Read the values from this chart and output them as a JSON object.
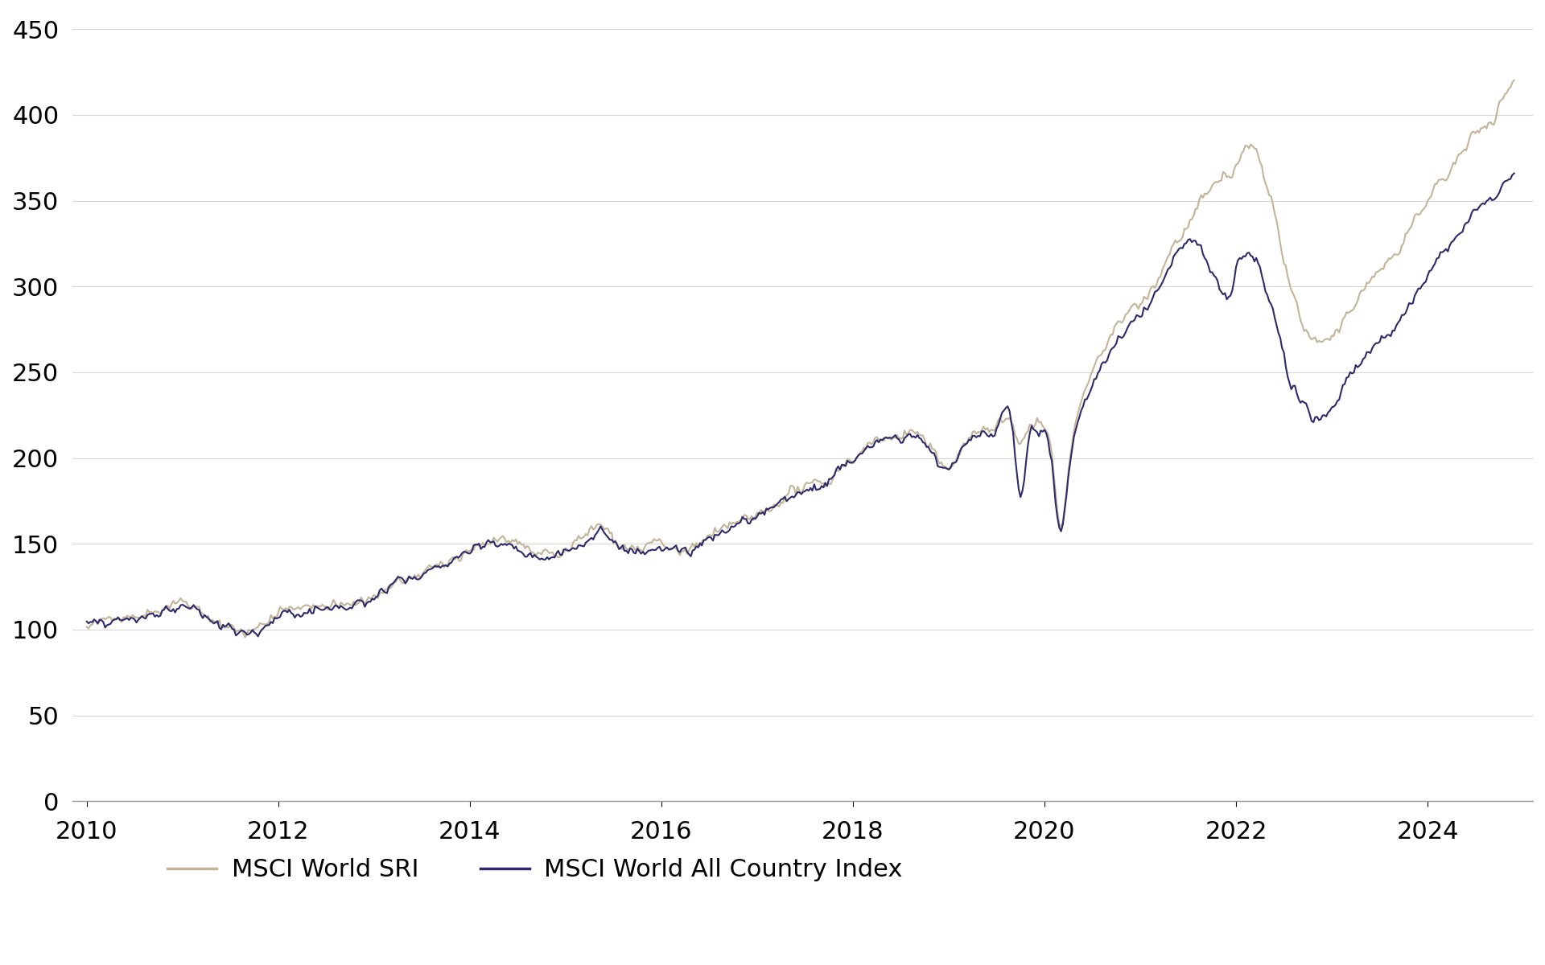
{
  "sri_color": "#C4B49A",
  "world_color": "#2D2A6B",
  "line_width": 1.5,
  "background_color": "#FFFFFF",
  "legend_labels": [
    "MSCI World SRI",
    "MSCI World All Country Index"
  ],
  "yticks": [
    0,
    50,
    100,
    150,
    200,
    250,
    300,
    350,
    400,
    450
  ],
  "xticks": [
    2010,
    2012,
    2014,
    2016,
    2018,
    2020,
    2022,
    2024
  ],
  "ylim": [
    0,
    460
  ],
  "xlim": [
    2009.85,
    2025.1
  ],
  "grid_color": "#CCCCCC",
  "grid_alpha": 0.8,
  "anchor_sri": [
    [
      2010.0,
      100
    ],
    [
      2010.5,
      108
    ],
    [
      2010.92,
      114
    ],
    [
      2011.0,
      116
    ],
    [
      2011.25,
      107
    ],
    [
      2011.58,
      100
    ],
    [
      2011.75,
      99
    ],
    [
      2011.92,
      105
    ],
    [
      2012.0,
      107
    ],
    [
      2012.5,
      112
    ],
    [
      2012.75,
      115
    ],
    [
      2012.92,
      118
    ],
    [
      2013.0,
      120
    ],
    [
      2013.25,
      128
    ],
    [
      2013.5,
      133
    ],
    [
      2013.75,
      140
    ],
    [
      2013.92,
      145
    ],
    [
      2014.0,
      147
    ],
    [
      2014.25,
      151
    ],
    [
      2014.42,
      150
    ],
    [
      2014.58,
      147
    ],
    [
      2014.75,
      144
    ],
    [
      2014.92,
      144
    ],
    [
      2015.0,
      146
    ],
    [
      2015.25,
      155
    ],
    [
      2015.42,
      157
    ],
    [
      2015.58,
      150
    ],
    [
      2015.75,
      148
    ],
    [
      2015.92,
      151
    ],
    [
      2016.0,
      150
    ],
    [
      2016.17,
      146
    ],
    [
      2016.25,
      146
    ],
    [
      2016.42,
      150
    ],
    [
      2016.5,
      153
    ],
    [
      2016.67,
      157
    ],
    [
      2016.75,
      162
    ],
    [
      2016.83,
      164
    ],
    [
      2016.92,
      164
    ],
    [
      2017.0,
      166
    ],
    [
      2017.25,
      176
    ],
    [
      2017.5,
      182
    ],
    [
      2017.75,
      188
    ],
    [
      2017.92,
      197
    ],
    [
      2018.0,
      200
    ],
    [
      2018.17,
      208
    ],
    [
      2018.33,
      213
    ],
    [
      2018.5,
      211
    ],
    [
      2018.67,
      215
    ],
    [
      2018.75,
      210
    ],
    [
      2018.83,
      205
    ],
    [
      2018.92,
      195
    ],
    [
      2019.0,
      195
    ],
    [
      2019.17,
      208
    ],
    [
      2019.33,
      215
    ],
    [
      2019.5,
      220
    ],
    [
      2019.67,
      215
    ],
    [
      2019.75,
      208
    ],
    [
      2019.83,
      218
    ],
    [
      2019.92,
      222
    ],
    [
      2020.0,
      215
    ],
    [
      2020.08,
      200
    ],
    [
      2020.17,
      160
    ],
    [
      2020.25,
      192
    ],
    [
      2020.33,
      220
    ],
    [
      2020.42,
      240
    ],
    [
      2020.5,
      250
    ],
    [
      2020.58,
      260
    ],
    [
      2020.67,
      268
    ],
    [
      2020.75,
      278
    ],
    [
      2020.83,
      282
    ],
    [
      2020.92,
      287
    ],
    [
      2021.0,
      292
    ],
    [
      2021.17,
      305
    ],
    [
      2021.33,
      322
    ],
    [
      2021.5,
      337
    ],
    [
      2021.67,
      350
    ],
    [
      2021.75,
      355
    ],
    [
      2021.83,
      360
    ],
    [
      2021.92,
      363
    ],
    [
      2022.0,
      370
    ],
    [
      2022.08,
      378
    ],
    [
      2022.17,
      382
    ],
    [
      2022.25,
      370
    ],
    [
      2022.33,
      355
    ],
    [
      2022.42,
      338
    ],
    [
      2022.5,
      315
    ],
    [
      2022.58,
      298
    ],
    [
      2022.67,
      280
    ],
    [
      2022.75,
      270
    ],
    [
      2022.83,
      268
    ],
    [
      2022.92,
      268
    ],
    [
      2023.0,
      268
    ],
    [
      2023.17,
      285
    ],
    [
      2023.33,
      298
    ],
    [
      2023.5,
      310
    ],
    [
      2023.67,
      320
    ],
    [
      2023.75,
      328
    ],
    [
      2023.83,
      334
    ],
    [
      2023.92,
      340
    ],
    [
      2024.0,
      348
    ],
    [
      2024.17,
      362
    ],
    [
      2024.33,
      374
    ],
    [
      2024.5,
      390
    ],
    [
      2024.67,
      398
    ],
    [
      2024.75,
      405
    ],
    [
      2024.83,
      412
    ],
    [
      2024.92,
      418
    ]
  ],
  "anchor_world": [
    [
      2010.0,
      100
    ],
    [
      2010.5,
      107
    ],
    [
      2010.92,
      113
    ],
    [
      2011.0,
      115
    ],
    [
      2011.25,
      106
    ],
    [
      2011.58,
      99
    ],
    [
      2011.75,
      98
    ],
    [
      2011.92,
      104
    ],
    [
      2012.0,
      106
    ],
    [
      2012.5,
      111
    ],
    [
      2012.75,
      114
    ],
    [
      2012.92,
      117
    ],
    [
      2013.0,
      119
    ],
    [
      2013.25,
      127
    ],
    [
      2013.5,
      132
    ],
    [
      2013.75,
      139
    ],
    [
      2013.92,
      143
    ],
    [
      2014.0,
      145
    ],
    [
      2014.25,
      149
    ],
    [
      2014.42,
      148
    ],
    [
      2014.58,
      145
    ],
    [
      2014.75,
      142
    ],
    [
      2014.92,
      142
    ],
    [
      2015.0,
      144
    ],
    [
      2015.25,
      153
    ],
    [
      2015.42,
      155
    ],
    [
      2015.58,
      148
    ],
    [
      2015.75,
      146
    ],
    [
      2015.92,
      150
    ],
    [
      2016.0,
      149
    ],
    [
      2016.17,
      145
    ],
    [
      2016.25,
      145
    ],
    [
      2016.42,
      149
    ],
    [
      2016.5,
      152
    ],
    [
      2016.67,
      156
    ],
    [
      2016.75,
      161
    ],
    [
      2016.83,
      163
    ],
    [
      2016.92,
      163
    ],
    [
      2017.0,
      165
    ],
    [
      2017.25,
      175
    ],
    [
      2017.5,
      181
    ],
    [
      2017.75,
      187
    ],
    [
      2017.92,
      196
    ],
    [
      2018.0,
      199
    ],
    [
      2018.17,
      207
    ],
    [
      2018.33,
      212
    ],
    [
      2018.5,
      210
    ],
    [
      2018.67,
      213
    ],
    [
      2018.75,
      208
    ],
    [
      2018.83,
      203
    ],
    [
      2018.92,
      193
    ],
    [
      2019.0,
      193
    ],
    [
      2019.17,
      206
    ],
    [
      2019.33,
      213
    ],
    [
      2019.5,
      218
    ],
    [
      2019.67,
      213
    ],
    [
      2019.75,
      176
    ],
    [
      2019.83,
      210
    ],
    [
      2019.92,
      218
    ],
    [
      2020.0,
      213
    ],
    [
      2020.08,
      195
    ],
    [
      2020.17,
      158
    ],
    [
      2020.25,
      190
    ],
    [
      2020.33,
      217
    ],
    [
      2020.42,
      232
    ],
    [
      2020.5,
      242
    ],
    [
      2020.58,
      252
    ],
    [
      2020.67,
      260
    ],
    [
      2020.75,
      268
    ],
    [
      2020.83,
      273
    ],
    [
      2020.92,
      278
    ],
    [
      2021.0,
      283
    ],
    [
      2021.17,
      298
    ],
    [
      2021.33,
      315
    ],
    [
      2021.5,
      328
    ],
    [
      2021.67,
      318
    ],
    [
      2021.75,
      308
    ],
    [
      2021.83,
      298
    ],
    [
      2021.92,
      292
    ],
    [
      2022.0,
      310
    ],
    [
      2022.08,
      318
    ],
    [
      2022.17,
      315
    ],
    [
      2022.25,
      308
    ],
    [
      2022.33,
      295
    ],
    [
      2022.42,
      278
    ],
    [
      2022.5,
      258
    ],
    [
      2022.58,
      240
    ],
    [
      2022.67,
      232
    ],
    [
      2022.75,
      228
    ],
    [
      2022.83,
      225
    ],
    [
      2022.92,
      223
    ],
    [
      2023.0,
      228
    ],
    [
      2023.17,
      245
    ],
    [
      2023.33,
      258
    ],
    [
      2023.5,
      268
    ],
    [
      2023.67,
      278
    ],
    [
      2023.75,
      285
    ],
    [
      2023.83,
      291
    ],
    [
      2023.92,
      298
    ],
    [
      2024.0,
      305
    ],
    [
      2024.17,
      320
    ],
    [
      2024.33,
      332
    ],
    [
      2024.5,
      345
    ],
    [
      2024.67,
      352
    ],
    [
      2024.75,
      356
    ],
    [
      2024.83,
      360
    ],
    [
      2024.92,
      364
    ]
  ]
}
